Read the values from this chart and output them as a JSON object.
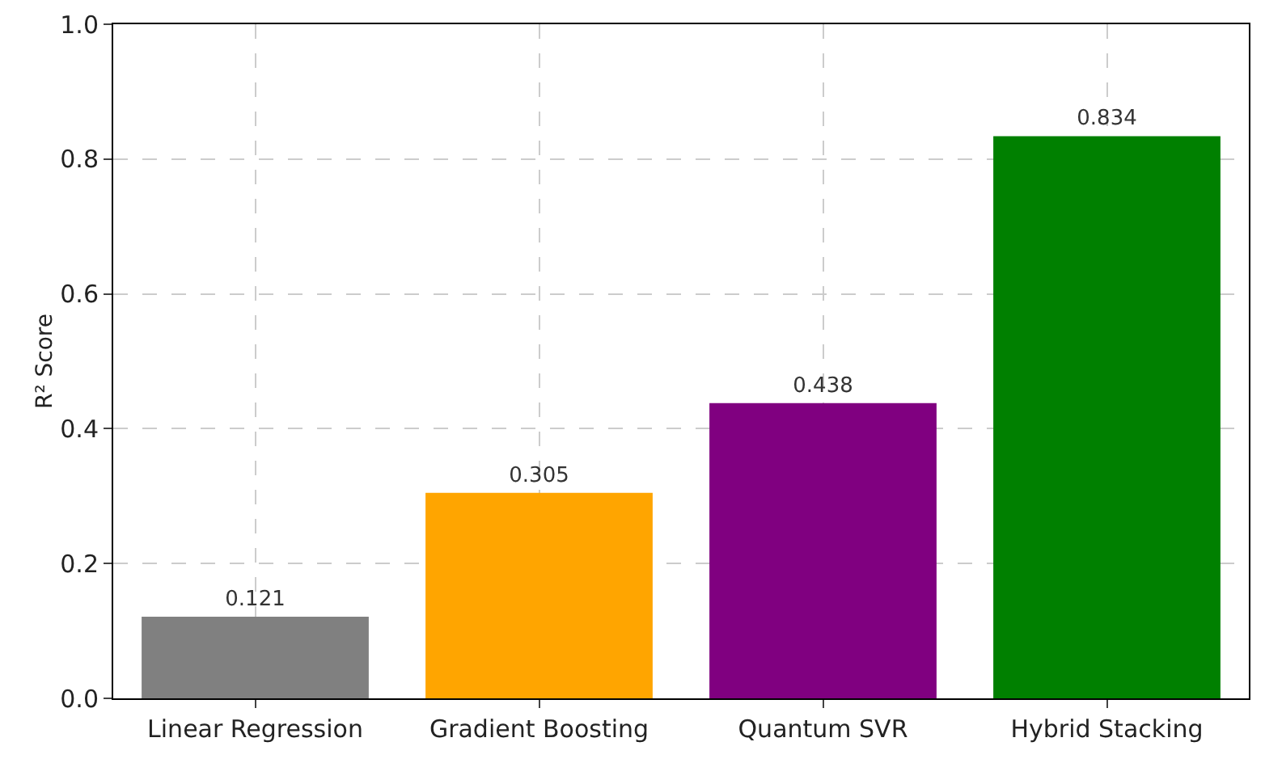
{
  "chart_data": {
    "type": "bar",
    "ylabel": "R² Score",
    "categories": [
      "Linear Regression",
      "Gradient Boosting",
      "Quantum SVR",
      "Hybrid Stacking"
    ],
    "values": [
      0.121,
      0.305,
      0.438,
      0.834
    ],
    "colors": [
      "#808080",
      "#ffa500",
      "#800080",
      "#008000"
    ],
    "ylim": [
      0,
      1.0
    ],
    "yticks": [
      {
        "value": 0,
        "label": "0.0"
      },
      0.2,
      0.4,
      0.6,
      0.8,
      {
        "value": 1,
        "label": "1.0"
      }
    ],
    "grid": true,
    "data_labels": true
  }
}
